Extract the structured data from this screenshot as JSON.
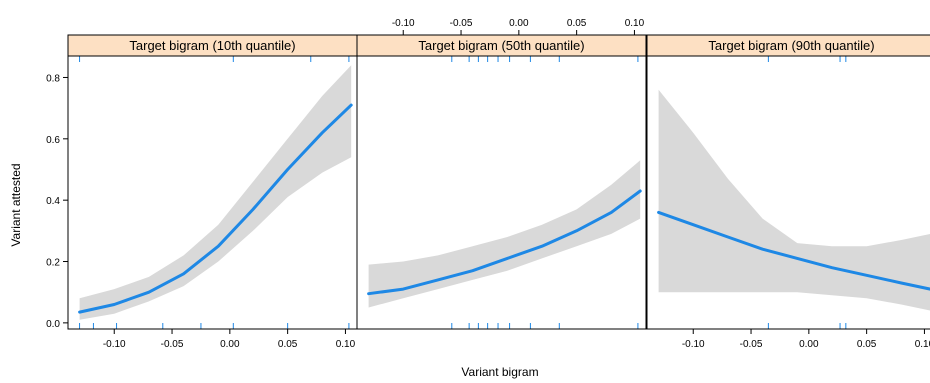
{
  "chart_data": {
    "type": "line",
    "xlabel": "Variant bigram",
    "ylabel": "Variant attested",
    "xlim": [
      -0.14,
      0.11
    ],
    "ylim": [
      -0.02,
      0.87
    ],
    "x_ticks": [
      "-0.10",
      "-0.05",
      "0.00",
      "0.05",
      "0.10"
    ],
    "y_ticks": [
      "0.0",
      "0.2",
      "0.4",
      "0.6",
      "0.8"
    ],
    "panels": [
      {
        "title": "Target bigram (10th quantile)",
        "x": [
          -0.13,
          -0.1,
          -0.07,
          -0.04,
          -0.01,
          0.02,
          0.05,
          0.08,
          0.105
        ],
        "fit": [
          0.035,
          0.06,
          0.1,
          0.16,
          0.25,
          0.37,
          0.5,
          0.62,
          0.71
        ],
        "lower": [
          0.01,
          0.03,
          0.07,
          0.12,
          0.2,
          0.3,
          0.41,
          0.49,
          0.54
        ],
        "upper": [
          0.08,
          0.11,
          0.15,
          0.22,
          0.32,
          0.46,
          0.6,
          0.74,
          0.84
        ],
        "rug_top": [
          -0.13,
          0.003,
          0.07,
          0.103
        ],
        "rug_bottom": [
          -0.13,
          -0.118,
          -0.098,
          -0.058,
          -0.025,
          0.003,
          0.05,
          0.103
        ]
      },
      {
        "title": "Target bigram (50th quantile)",
        "x": [
          -0.13,
          -0.1,
          -0.07,
          -0.04,
          -0.01,
          0.02,
          0.05,
          0.08,
          0.105
        ],
        "fit": [
          0.095,
          0.11,
          0.14,
          0.17,
          0.21,
          0.25,
          0.3,
          0.36,
          0.43
        ],
        "lower": [
          0.05,
          0.08,
          0.11,
          0.14,
          0.17,
          0.21,
          0.25,
          0.29,
          0.34
        ],
        "upper": [
          0.19,
          0.2,
          0.22,
          0.25,
          0.28,
          0.32,
          0.37,
          0.45,
          0.53
        ],
        "rug_top": [
          -0.058,
          -0.043,
          -0.035,
          -0.027,
          -0.018,
          -0.008,
          0.01,
          0.035,
          0.103
        ],
        "rug_bottom": [
          -0.058,
          -0.043,
          -0.035,
          -0.027,
          -0.018,
          -0.008,
          0.01,
          0.035,
          0.103
        ]
      },
      {
        "title": "Target bigram (90th quantile)",
        "x": [
          -0.13,
          -0.1,
          -0.07,
          -0.04,
          -0.01,
          0.02,
          0.05,
          0.08,
          0.105
        ],
        "fit": [
          0.36,
          0.32,
          0.28,
          0.24,
          0.21,
          0.18,
          0.155,
          0.13,
          0.11
        ],
        "lower": [
          0.1,
          0.1,
          0.1,
          0.1,
          0.1,
          0.09,
          0.08,
          0.06,
          0.04
        ],
        "upper": [
          0.76,
          0.62,
          0.47,
          0.34,
          0.26,
          0.25,
          0.25,
          0.27,
          0.29
        ],
        "rug_top": [
          -0.035,
          0.027,
          0.032
        ],
        "rug_bottom": [
          -0.035,
          0.027,
          0.032
        ]
      }
    ],
    "colors": {
      "line": "#1e88e5",
      "band": "#d9d9d9",
      "rug": "#1e88e5",
      "strip": "#fde0c3"
    },
    "grid": false,
    "legend": "none"
  }
}
